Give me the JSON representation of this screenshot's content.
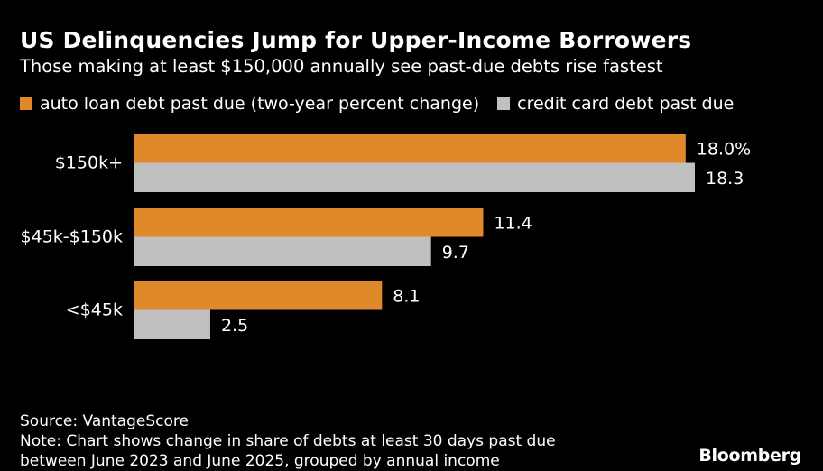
{
  "header": {
    "title": "US Delinquencies Jump for Upper-Income Borrowers",
    "subtitle": "Those making at least $150,000 annually see past-due debts rise fastest"
  },
  "chart_data": {
    "type": "bar",
    "orientation": "horizontal",
    "categories": [
      "$150k+",
      "$45k-$150k",
      "<$45k"
    ],
    "series": [
      {
        "name": "auto loan debt past due (two-year percent change)",
        "color": "#e0892a",
        "values": [
          18.0,
          11.4,
          8.1
        ],
        "labels": [
          "18.0%",
          "11.4",
          "8.1"
        ]
      },
      {
        "name": "credit card debt past due",
        "color": "#c0c0c0",
        "values": [
          18.3,
          9.7,
          2.5
        ],
        "labels": [
          "18.3",
          "9.7",
          "2.5"
        ]
      }
    ],
    "xlim": [
      0,
      18.3
    ],
    "grid": false,
    "legend_position": "top-left"
  },
  "footer": {
    "source": "Source: VantageScore",
    "note_line1": "Note: Chart shows change in share of debts at least 30 days past due",
    "note_line2": "between June 2023 and June 2025, grouped by annual income"
  },
  "brand": "Bloomberg"
}
